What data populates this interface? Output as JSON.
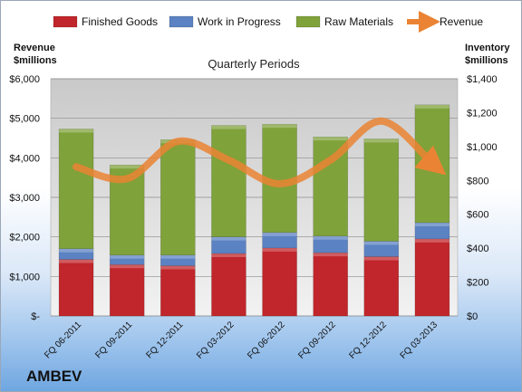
{
  "chart_data": {
    "type": "bar",
    "stacked": true,
    "title": "Quarterly Periods",
    "company": "AMBEV",
    "ylabel_left": "Revenue $millions",
    "ylabel_left_lines": [
      "Revenue",
      "$millions"
    ],
    "ylabel_right": "Inventory $millions",
    "ylabel_right_lines": [
      "Inventory",
      "$millions"
    ],
    "left_axis": {
      "min": 0,
      "max": 6000,
      "ticks": [
        "$-",
        "$1,000",
        "$2,000",
        "$3,000",
        "$4,000",
        "$5,000",
        "$6,000"
      ]
    },
    "right_axis": {
      "min": 0,
      "max": 1400,
      "ticks": [
        "$0",
        "$200",
        "$400",
        "$600",
        "$800",
        "$1,000",
        "$1,200",
        "$1,400"
      ]
    },
    "categories": [
      "FQ 06-2011",
      "FQ 09-2011",
      "FQ 12-2011",
      "FQ 03-2012",
      "FQ 06-2012",
      "FQ 09-2012",
      "FQ 12-2012",
      "FQ 03-2013"
    ],
    "series": [
      {
        "name": "Finished Goods",
        "axis": "left",
        "color": "#c0262b",
        "values": [
          1430,
          1300,
          1270,
          1580,
          1720,
          1600,
          1500,
          1950
        ]
      },
      {
        "name": "Work in Progress",
        "axis": "left",
        "color": "#5b82c2",
        "values": [
          270,
          240,
          270,
          420,
          390,
          420,
          390,
          410
        ]
      },
      {
        "name": "Raw Materials",
        "axis": "left",
        "color": "#7fa23a",
        "values": [
          3030,
          2280,
          2920,
          2820,
          2740,
          2510,
          2590,
          2980
        ]
      },
      {
        "name": "Revenue",
        "axis": "right",
        "type": "line",
        "color": "#ea8434",
        "values": [
          880,
          810,
          1030,
          920,
          780,
          920,
          1150,
          900
        ]
      }
    ],
    "grid": true,
    "legend": "top"
  }
}
